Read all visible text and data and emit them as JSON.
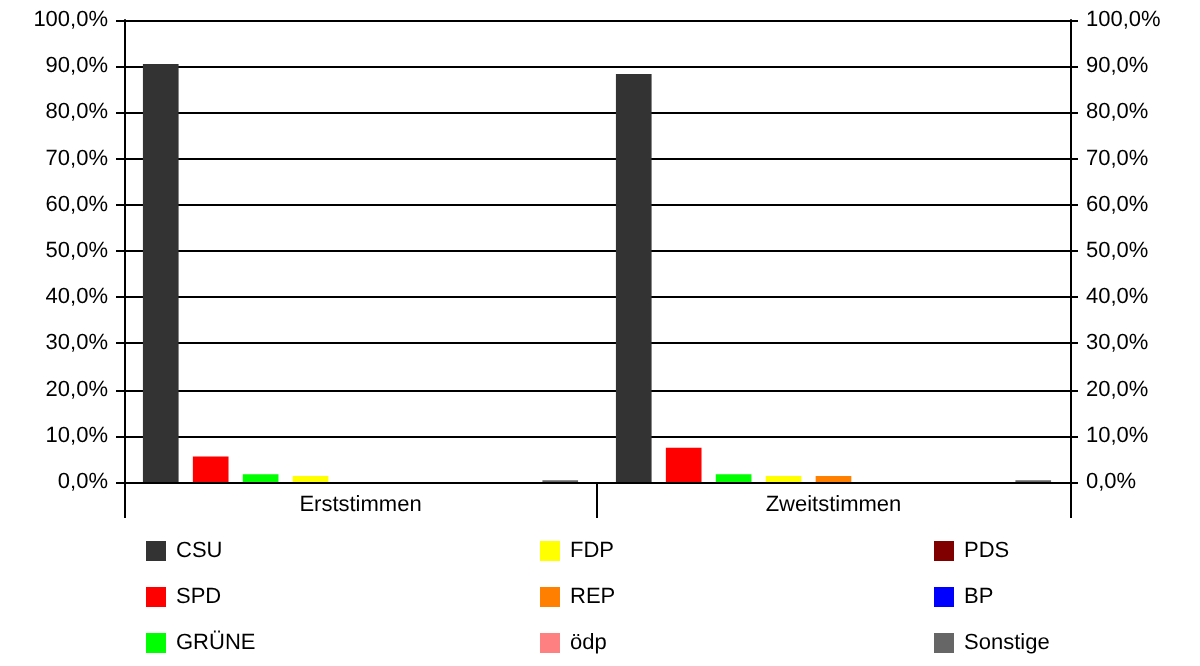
{
  "chart_data": {
    "type": "bar",
    "categories": [
      "Erststimmen",
      "Zweitstimmen"
    ],
    "series": [
      {
        "name": "CSU",
        "color": "#333333",
        "values": [
          90.5,
          88.3
        ]
      },
      {
        "name": "SPD",
        "color": "#ff0000",
        "values": [
          5.5,
          7.4
        ]
      },
      {
        "name": "GRÜNE",
        "color": "#00ff00",
        "values": [
          1.7,
          1.7
        ]
      },
      {
        "name": "FDP",
        "color": "#ffff00",
        "values": [
          1.3,
          1.3
        ]
      },
      {
        "name": "REP",
        "color": "#ff8000",
        "values": [
          0,
          1.3
        ]
      },
      {
        "name": "ödp",
        "color": "#ff8080",
        "values": [
          0,
          0
        ]
      },
      {
        "name": "PDS",
        "color": "#800000",
        "values": [
          0,
          0
        ]
      },
      {
        "name": "BP",
        "color": "#0000ff",
        "values": [
          0,
          0
        ]
      },
      {
        "name": "Sonstige",
        "color": "#666666",
        "values": [
          0.4,
          0.4
        ]
      }
    ],
    "ylim": [
      0,
      100
    ],
    "yticks": [
      {
        "value": 0,
        "label": "0,0%"
      },
      {
        "value": 10,
        "label": "10,0%"
      },
      {
        "value": 20,
        "label": "20,0%"
      },
      {
        "value": 30,
        "label": "30,0%"
      },
      {
        "value": 40,
        "label": "40,0%"
      },
      {
        "value": 50,
        "label": "50,0%"
      },
      {
        "value": 60,
        "label": "60,0%"
      },
      {
        "value": 70,
        "label": "70,0%"
      },
      {
        "value": 80,
        "label": "80,0%"
      },
      {
        "value": 90,
        "label": "90,0%"
      },
      {
        "value": 100,
        "label": "100,0%"
      }
    ],
    "y2lim": [
      0,
      100
    ],
    "y2ticks": [
      {
        "value": 0,
        "label": "0,0%"
      },
      {
        "value": 10,
        "label": "10,0%"
      },
      {
        "value": 20,
        "label": "20,0%"
      },
      {
        "value": 30,
        "label": "30,0%"
      },
      {
        "value": 40,
        "label": "40,0%"
      },
      {
        "value": 50,
        "label": "50,0%"
      },
      {
        "value": 60,
        "label": "60,0%"
      },
      {
        "value": 70,
        "label": "70,0%"
      },
      {
        "value": 80,
        "label": "80,0%"
      },
      {
        "value": 90,
        "label": "90,0%"
      },
      {
        "value": 100,
        "label": "100,0%"
      }
    ],
    "grid": "y",
    "legend": "bottom"
  }
}
